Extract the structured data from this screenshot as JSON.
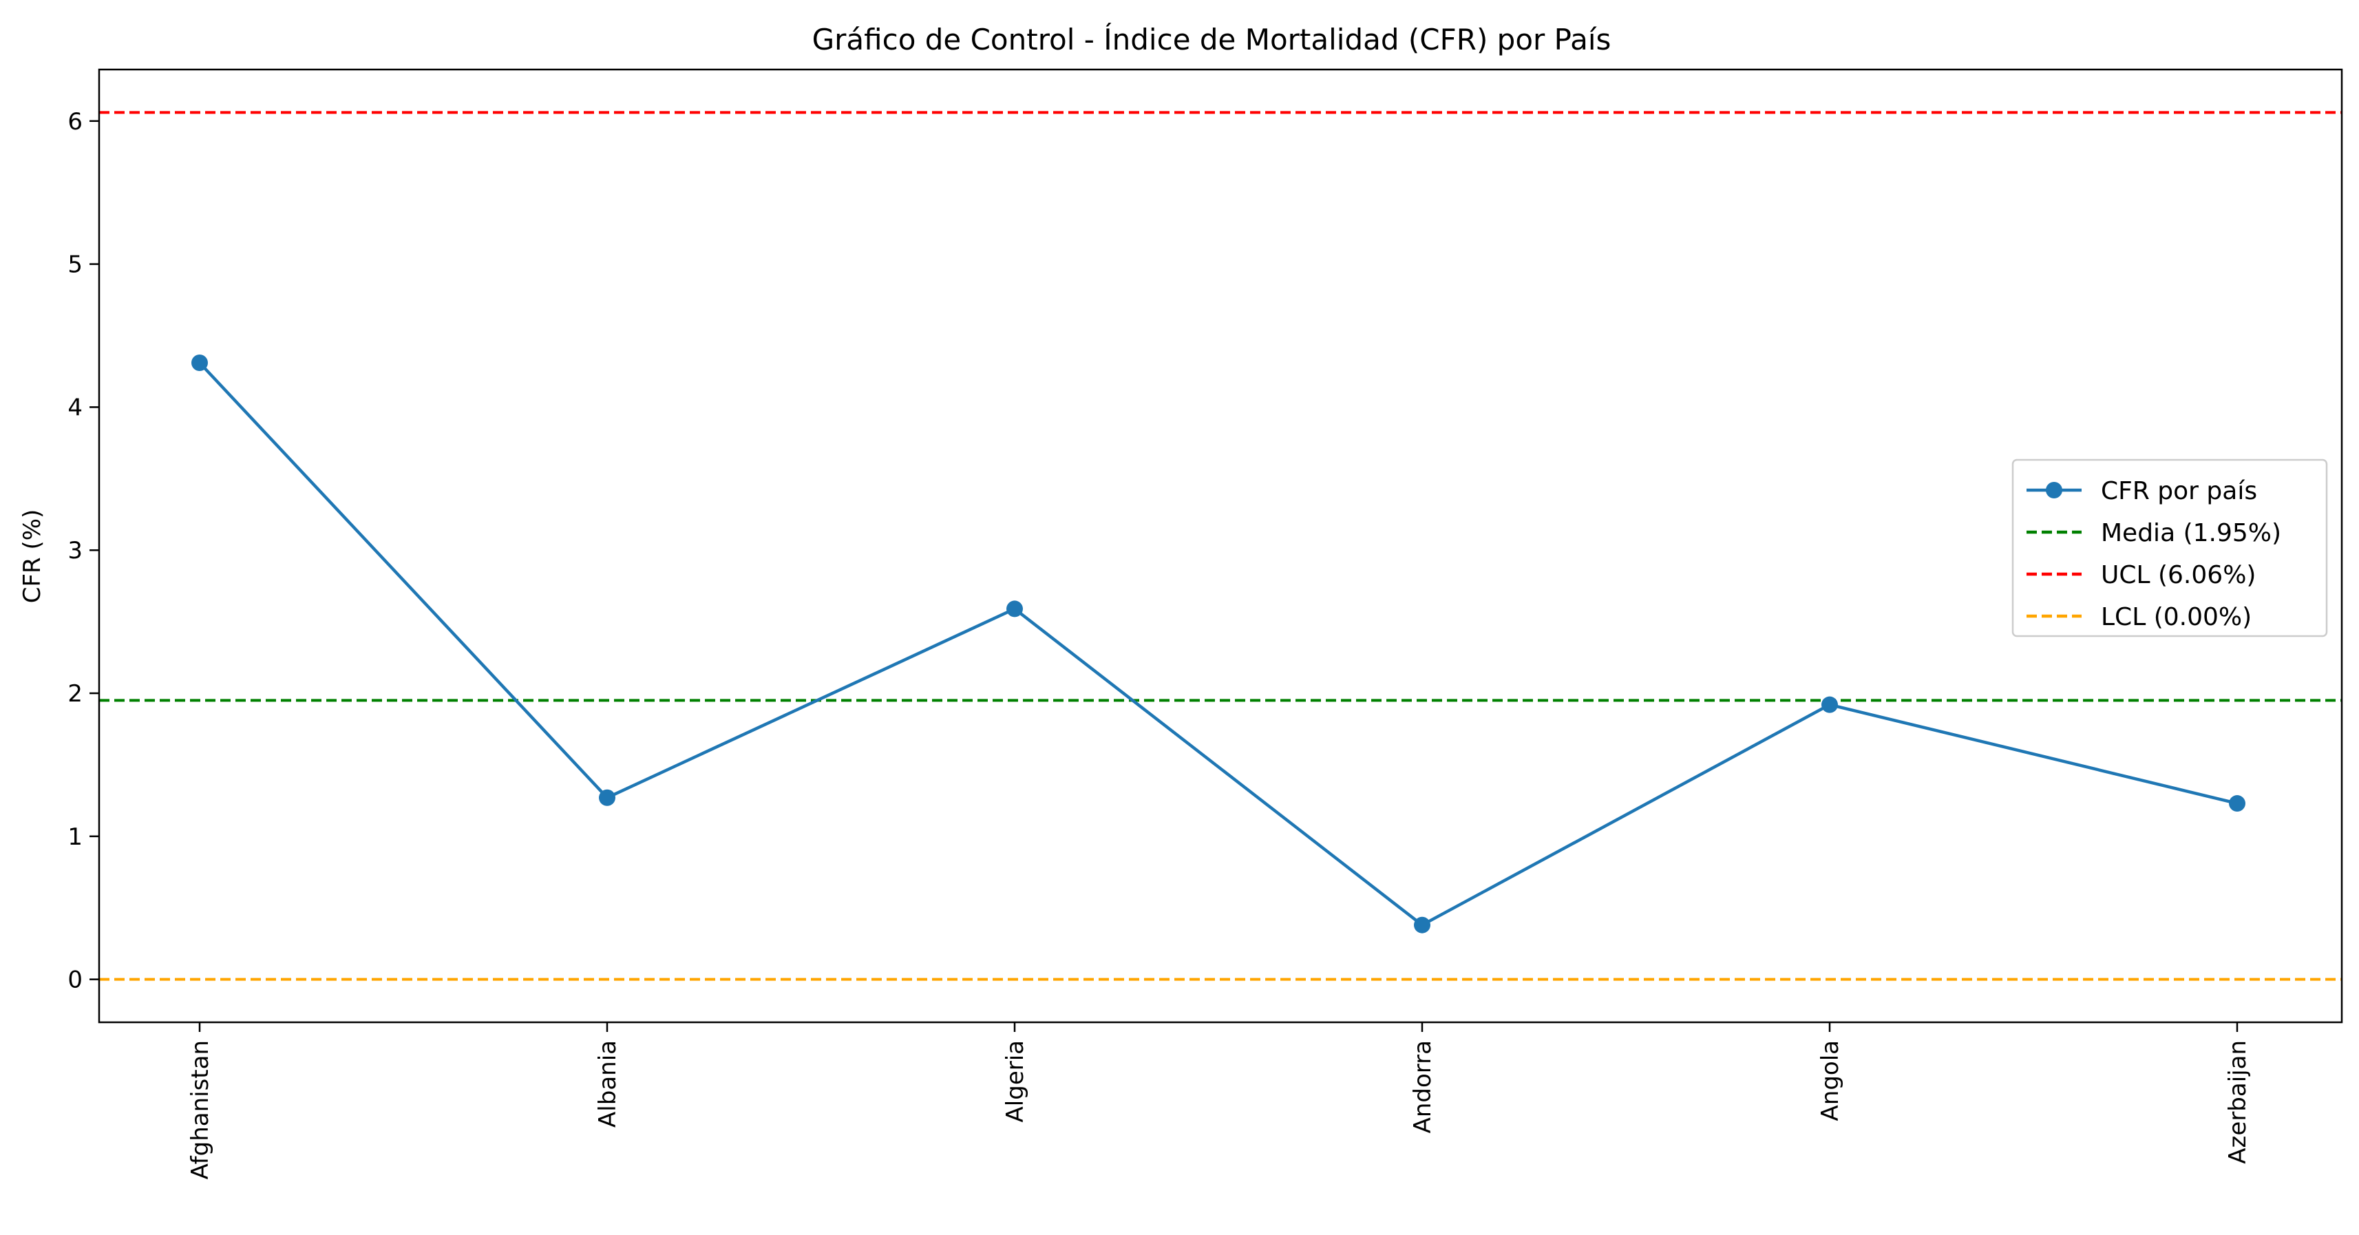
{
  "chart_data": {
    "type": "line",
    "title": "Gráfico de Control - Índice de Mortalidad (CFR) por País",
    "xlabel": "",
    "ylabel": "CFR (%)",
    "categories": [
      "Afghanistan",
      "Albania",
      "Algeria",
      "Andorra",
      "Angola",
      "Azerbaijan"
    ],
    "series": [
      {
        "name": "CFR por país",
        "values": [
          4.31,
          1.27,
          2.59,
          0.38,
          1.92,
          1.23
        ],
        "color": "#1f77b4"
      }
    ],
    "reference_lines": [
      {
        "name": "Media (1.95%)",
        "value": 1.95,
        "color": "#008000"
      },
      {
        "name": "UCL (6.06%)",
        "value": 6.06,
        "color": "#ff0000"
      },
      {
        "name": "LCL (0.00%)",
        "value": 0.0,
        "color": "#ffa500"
      }
    ],
    "ylim": [
      -0.3,
      6.36
    ],
    "yticks": [
      0,
      1,
      2,
      3,
      4,
      5,
      6
    ],
    "x_tick_rotation": "vertical",
    "grid": false,
    "legend_position": "center-right"
  }
}
